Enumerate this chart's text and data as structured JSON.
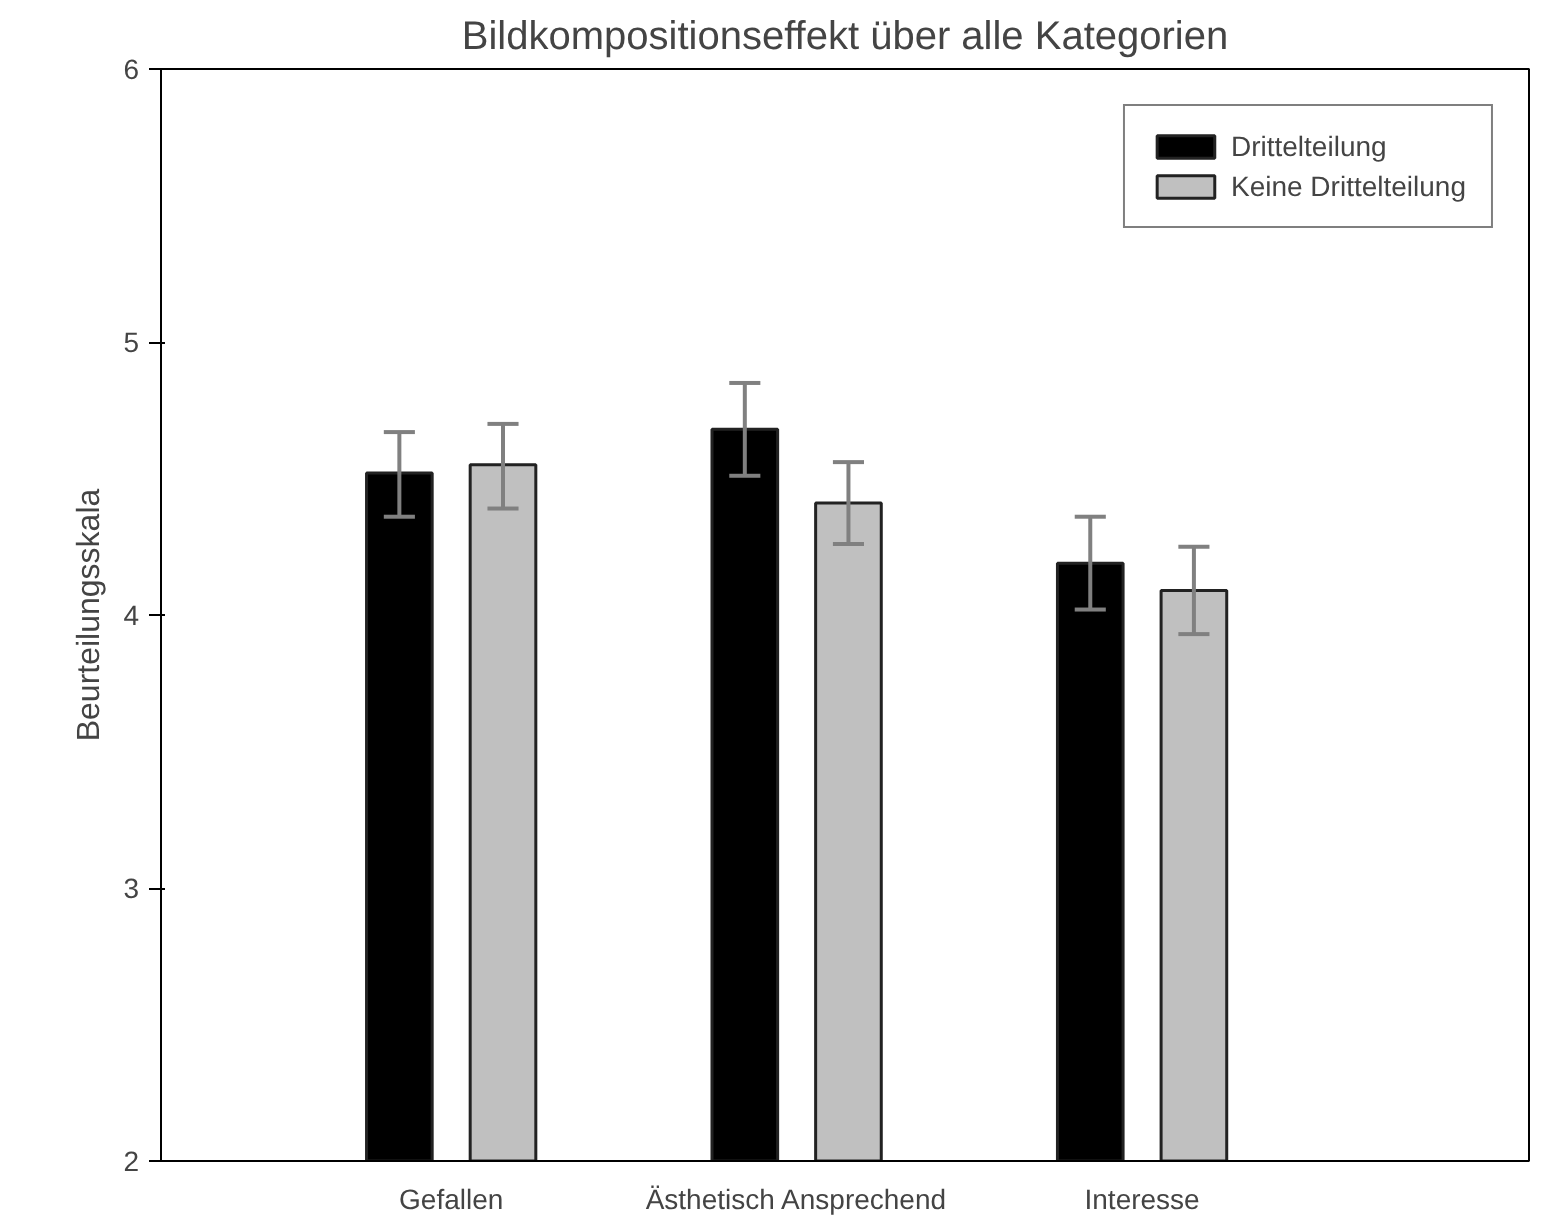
{
  "chart_data": {
    "type": "bar",
    "title": "Bildkompositionseffekt über alle Kategorien",
    "ylabel": "Beurteilungsskala",
    "categories": [
      "Gefallen",
      "Ästhetisch Ansprechend",
      "Interesse"
    ],
    "series": [
      {
        "name": "Drittelteilung",
        "color": "#000000",
        "values": [
          4.52,
          4.68,
          4.19
        ],
        "errors": [
          [
            4.36,
            4.67
          ],
          [
            4.51,
            4.85
          ],
          [
            4.02,
            4.36
          ]
        ]
      },
      {
        "name": "Keine Drittelteilung",
        "color": "#c0c0c0",
        "values": [
          4.55,
          4.41,
          4.09
        ],
        "errors": [
          [
            4.39,
            4.7
          ],
          [
            4.26,
            4.56
          ],
          [
            3.93,
            4.25
          ]
        ]
      }
    ],
    "ylim": [
      2,
      6
    ],
    "yticks": [
      2,
      3,
      4,
      5,
      6
    ],
    "grid": false,
    "legend": "top right"
  }
}
